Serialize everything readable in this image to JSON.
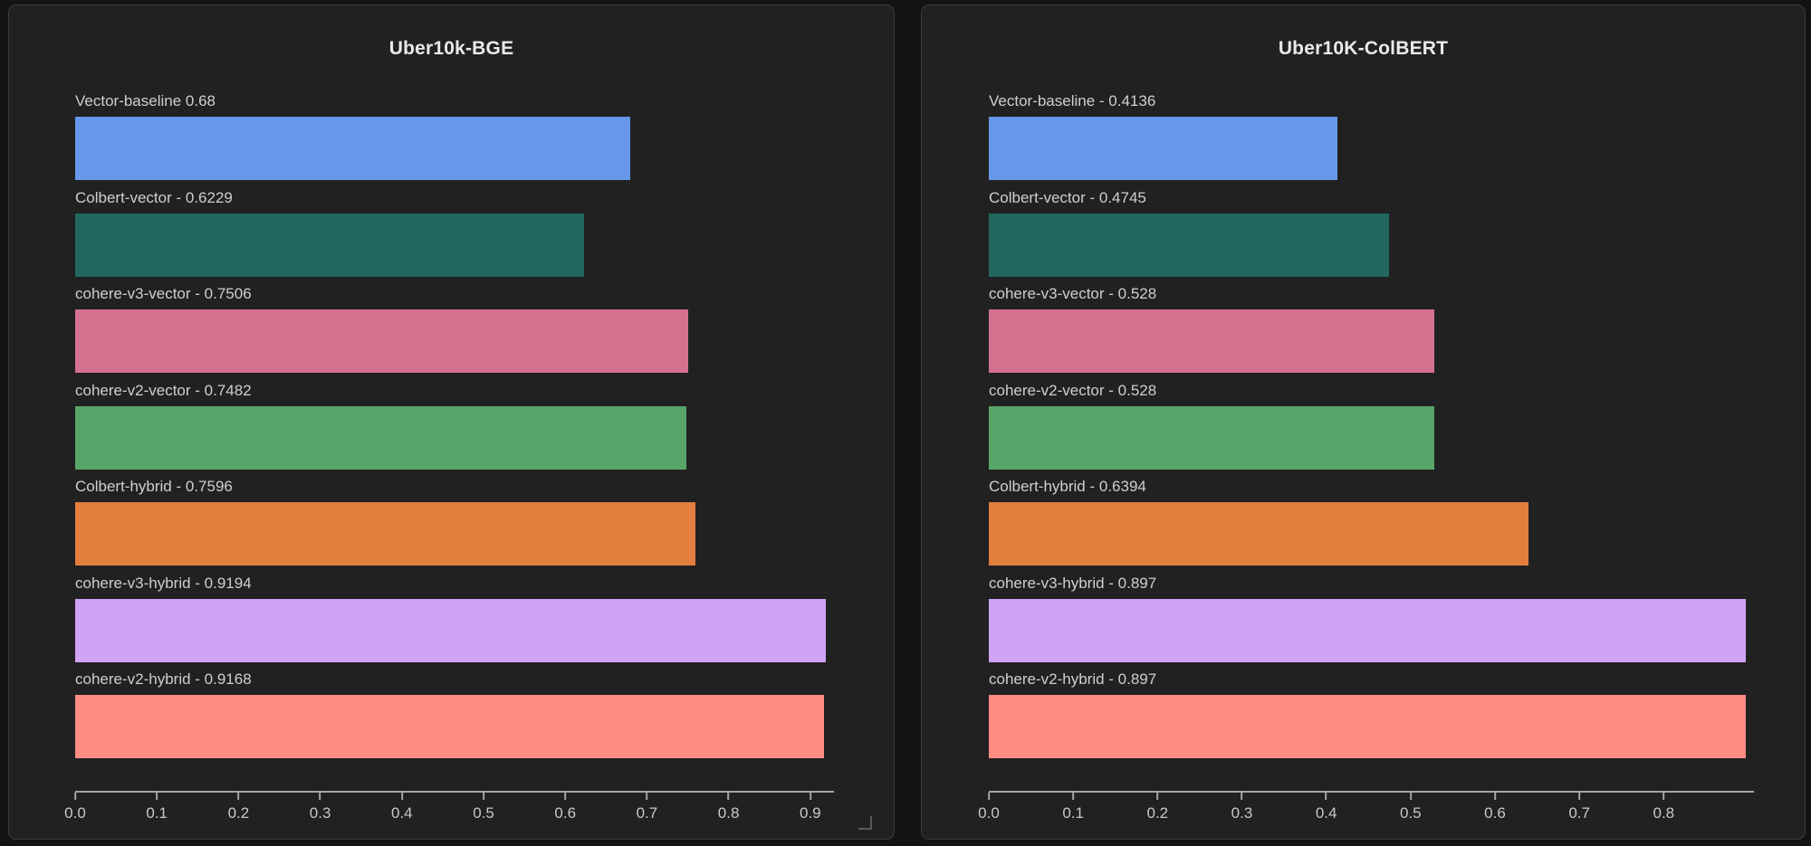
{
  "page": {
    "background": "#131313",
    "panel_background": "#212121",
    "panel_border": "#3c3c3c",
    "title_color": "#eaeaea",
    "label_color": "#cfcfcf",
    "axis_color": "#a5a5a5",
    "tick_label_color": "#c8c8c8"
  },
  "icons": {
    "resize_handle": "corner-resize-icon"
  },
  "chart_data": [
    {
      "type": "bar",
      "orientation": "horizontal",
      "title": "Uber10k-BGE",
      "categories": [
        "Vector-baseline",
        "Colbert-vector",
        "cohere-v3-vector",
        "cohere-v2-vector",
        "Colbert-hybrid",
        "cohere-v3-hybrid",
        "cohere-v2-hybrid"
      ],
      "values": [
        0.68,
        0.6229,
        0.7506,
        0.7482,
        0.7596,
        0.9194,
        0.9168
      ],
      "bar_labels": [
        "Vector-baseline 0.68",
        "Colbert-vector - 0.6229",
        "cohere-v3-vector - 0.7506",
        "cohere-v2-vector - 0.7482",
        "Colbert-hybrid - 0.7596",
        "cohere-v3-hybrid - 0.9194",
        "cohere-v2-hybrid - 0.9168"
      ],
      "bar_colors": [
        "#6698ea",
        "#20685d",
        "#d4718f",
        "#58a569",
        "#e27e3e",
        "#cfa3f5",
        "#fe8c85"
      ],
      "x_ticks": [
        0.0,
        0.1,
        0.2,
        0.3,
        0.4,
        0.5,
        0.6,
        0.7,
        0.8,
        0.9
      ],
      "x_tick_labels": [
        "0.0",
        "0.1",
        "0.2",
        "0.3",
        "0.4",
        "0.5",
        "0.6",
        "0.7",
        "0.8",
        "0.9"
      ],
      "xlim": [
        0,
        0.929
      ],
      "xlabel": "",
      "ylabel": "",
      "grid": false,
      "legend": "none"
    },
    {
      "type": "bar",
      "orientation": "horizontal",
      "title": "Uber10K-ColBERT",
      "categories": [
        "Vector-baseline",
        "Colbert-vector",
        "cohere-v3-vector",
        "cohere-v2-vector",
        "Colbert-hybrid",
        "cohere-v3-hybrid",
        "cohere-v2-hybrid"
      ],
      "values": [
        0.4136,
        0.4745,
        0.528,
        0.528,
        0.6394,
        0.897,
        0.897
      ],
      "bar_labels": [
        "Vector-baseline - 0.4136",
        "Colbert-vector - 0.4745",
        "cohere-v3-vector - 0.528",
        "cohere-v2-vector - 0.528",
        "Colbert-hybrid - 0.6394",
        "cohere-v3-hybrid - 0.897",
        "cohere-v2-hybrid - 0.897"
      ],
      "bar_colors": [
        "#6698ea",
        "#20685d",
        "#d4718f",
        "#58a569",
        "#e27e3e",
        "#cfa3f5",
        "#fe8c85"
      ],
      "x_ticks": [
        0.0,
        0.1,
        0.2,
        0.3,
        0.4,
        0.5,
        0.6,
        0.7,
        0.8
      ],
      "x_tick_labels": [
        "0.0",
        "0.1",
        "0.2",
        "0.3",
        "0.4",
        "0.5",
        "0.6",
        "0.7",
        "0.8"
      ],
      "xlim": [
        0,
        0.907
      ],
      "xlabel": "",
      "ylabel": "",
      "grid": false,
      "legend": "none"
    }
  ]
}
